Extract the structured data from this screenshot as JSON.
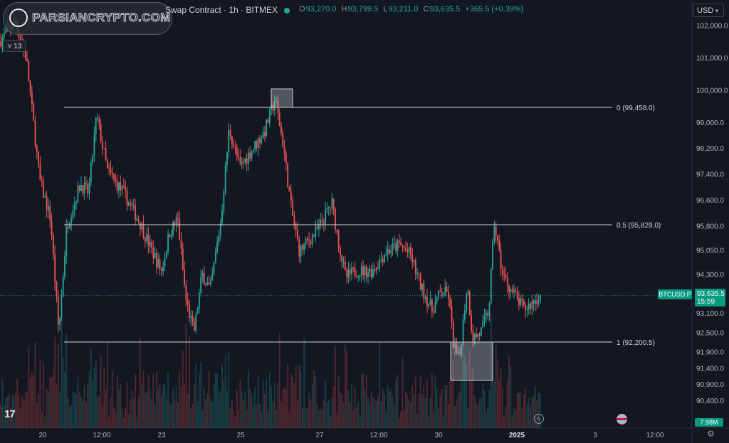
{
  "header": {
    "title": "Swap Contract · 1h · BITMEX",
    "ohlc": [
      {
        "key": "O",
        "value": "93,270.0"
      },
      {
        "key": "H",
        "value": "93,799.5"
      },
      {
        "key": "L",
        "value": "93,211.0"
      },
      {
        "key": "C",
        "value": "93,635.5"
      }
    ],
    "change": "+365.5 (+0.39%)",
    "currency": "USD",
    "indicators_collapsed_count": "13",
    "status_color": "#26a69a"
  },
  "watermark": {
    "text": "PARSIANCRYPTO.COM"
  },
  "price_axis": {
    "ticks": [
      "102,000.0",
      "101,000.0",
      "100,000.0",
      "99,000.0",
      "98,200.0",
      "97,400.0",
      "96,600.0",
      "95,800.0",
      "95,050.0",
      "94,300.0",
      "93,100.0",
      "92,500.0",
      "91,900.0",
      "91,400.0",
      "90,900.0",
      "90,400.0"
    ],
    "tick_values": [
      102000,
      101000,
      100000,
      99000,
      98200,
      97400,
      96600,
      95800,
      95050,
      94300,
      93100,
      92500,
      91900,
      91400,
      90900,
      90400
    ]
  },
  "time_axis": {
    "ticks": [
      {
        "label": "20",
        "bold": false
      },
      {
        "label": "12:00",
        "bold": false
      },
      {
        "label": "23",
        "bold": false
      },
      {
        "label": "25",
        "bold": false
      },
      {
        "label": "27",
        "bold": false
      },
      {
        "label": "12:00",
        "bold": false
      },
      {
        "label": "30",
        "bold": false
      },
      {
        "label": "2025",
        "bold": true
      },
      {
        "label": "3",
        "bold": false
      },
      {
        "label": "12:00",
        "bold": false
      }
    ]
  },
  "last_price": {
    "symbol": "BTCUSD.P",
    "price": "93,635.5",
    "countdown": "15:59",
    "value": 93635.5
  },
  "volume_label": "7.98M",
  "chart_data": {
    "type": "candlestick",
    "ylim": [
      90000,
      102700
    ],
    "fib_levels": [
      {
        "label": "0 (99,458.0)",
        "value": 99458.0
      },
      {
        "label": "0.5 (95,829.0)",
        "value": 95829.0
      },
      {
        "label": "1 (92,200.5)",
        "value": 92200.5
      }
    ],
    "price_path": [
      {
        "t": 0,
        "p": 101500
      },
      {
        "t": 0.03,
        "p": 102100
      },
      {
        "t": 0.05,
        "p": 101000
      },
      {
        "t": 0.075,
        "p": 97200
      },
      {
        "t": 0.095,
        "p": 96000
      },
      {
        "t": 0.11,
        "p": 92500
      },
      {
        "t": 0.125,
        "p": 95800
      },
      {
        "t": 0.15,
        "p": 97100
      },
      {
        "t": 0.165,
        "p": 96800
      },
      {
        "t": 0.18,
        "p": 99200
      },
      {
        "t": 0.2,
        "p": 97500
      },
      {
        "t": 0.23,
        "p": 96800
      },
      {
        "t": 0.26,
        "p": 95900
      },
      {
        "t": 0.28,
        "p": 95100
      },
      {
        "t": 0.3,
        "p": 94400
      },
      {
        "t": 0.315,
        "p": 95600
      },
      {
        "t": 0.33,
        "p": 96000
      },
      {
        "t": 0.345,
        "p": 93500
      },
      {
        "t": 0.36,
        "p": 92500
      },
      {
        "t": 0.375,
        "p": 94300
      },
      {
        "t": 0.39,
        "p": 93800
      },
      {
        "t": 0.41,
        "p": 96000
      },
      {
        "t": 0.425,
        "p": 98800
      },
      {
        "t": 0.445,
        "p": 97600
      },
      {
        "t": 0.465,
        "p": 98100
      },
      {
        "t": 0.49,
        "p": 98700
      },
      {
        "t": 0.51,
        "p": 99700
      },
      {
        "t": 0.525,
        "p": 98300
      },
      {
        "t": 0.54,
        "p": 96300
      },
      {
        "t": 0.555,
        "p": 95000
      },
      {
        "t": 0.57,
        "p": 95300
      },
      {
        "t": 0.59,
        "p": 95700
      },
      {
        "t": 0.605,
        "p": 96200
      },
      {
        "t": 0.615,
        "p": 96500
      },
      {
        "t": 0.625,
        "p": 95500
      },
      {
        "t": 0.64,
        "p": 94200
      },
      {
        "t": 0.66,
        "p": 94400
      },
      {
        "t": 0.69,
        "p": 94400
      },
      {
        "t": 0.715,
        "p": 95000
      },
      {
        "t": 0.74,
        "p": 95200
      },
      {
        "t": 0.76,
        "p": 94900
      },
      {
        "t": 0.78,
        "p": 93900
      },
      {
        "t": 0.8,
        "p": 93200
      },
      {
        "t": 0.815,
        "p": 93700
      },
      {
        "t": 0.83,
        "p": 93700
      },
      {
        "t": 0.84,
        "p": 92100
      },
      {
        "t": 0.85,
        "p": 91600
      },
      {
        "t": 0.865,
        "p": 94000
      },
      {
        "t": 0.875,
        "p": 92300
      },
      {
        "t": 0.89,
        "p": 92500
      },
      {
        "t": 0.905,
        "p": 93200
      },
      {
        "t": 0.915,
        "p": 95900
      },
      {
        "t": 0.93,
        "p": 94300
      },
      {
        "t": 0.95,
        "p": 93700
      },
      {
        "t": 0.97,
        "p": 93200
      },
      {
        "t": 1.0,
        "p": 93635
      }
    ]
  }
}
